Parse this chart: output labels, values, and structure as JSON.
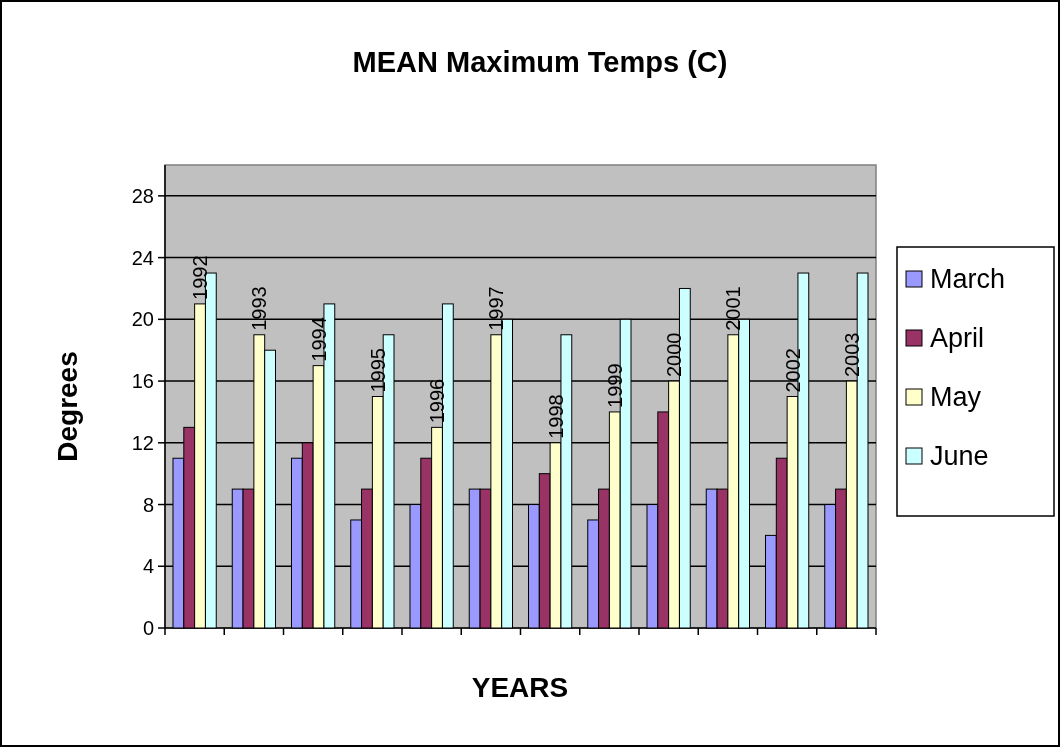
{
  "chart_data": {
    "type": "bar",
    "title": "MEAN Maximum Temps (C)",
    "xlabel": "YEARS",
    "ylabel": "Degrees",
    "categories": [
      "1992",
      "1993",
      "1994",
      "1995",
      "1996",
      "1997",
      "1998",
      "1999",
      "2000",
      "2001",
      "2002",
      "2003"
    ],
    "series": [
      {
        "name": "March",
        "color": "#9999ff",
        "values": [
          11,
          9,
          11,
          7,
          8,
          9,
          8,
          7,
          8,
          9,
          6,
          8
        ]
      },
      {
        "name": "April",
        "color": "#993366",
        "values": [
          13,
          9,
          12,
          9,
          11,
          9,
          10,
          9,
          14,
          9,
          11,
          9
        ]
      },
      {
        "name": "May",
        "color": "#ffffcc",
        "values": [
          21,
          19,
          17,
          15,
          13,
          19,
          12,
          14,
          16,
          19,
          15,
          16
        ]
      },
      {
        "name": "June",
        "color": "#ccffff",
        "values": [
          23,
          18,
          21,
          19,
          21,
          20,
          19,
          20,
          22,
          20,
          23,
          23
        ]
      }
    ],
    "ylim": [
      0,
      30
    ],
    "yticks": [
      0,
      4,
      8,
      12,
      16,
      20,
      24,
      28
    ],
    "grid": "y",
    "legend": "right",
    "tick_labels": "y"
  }
}
